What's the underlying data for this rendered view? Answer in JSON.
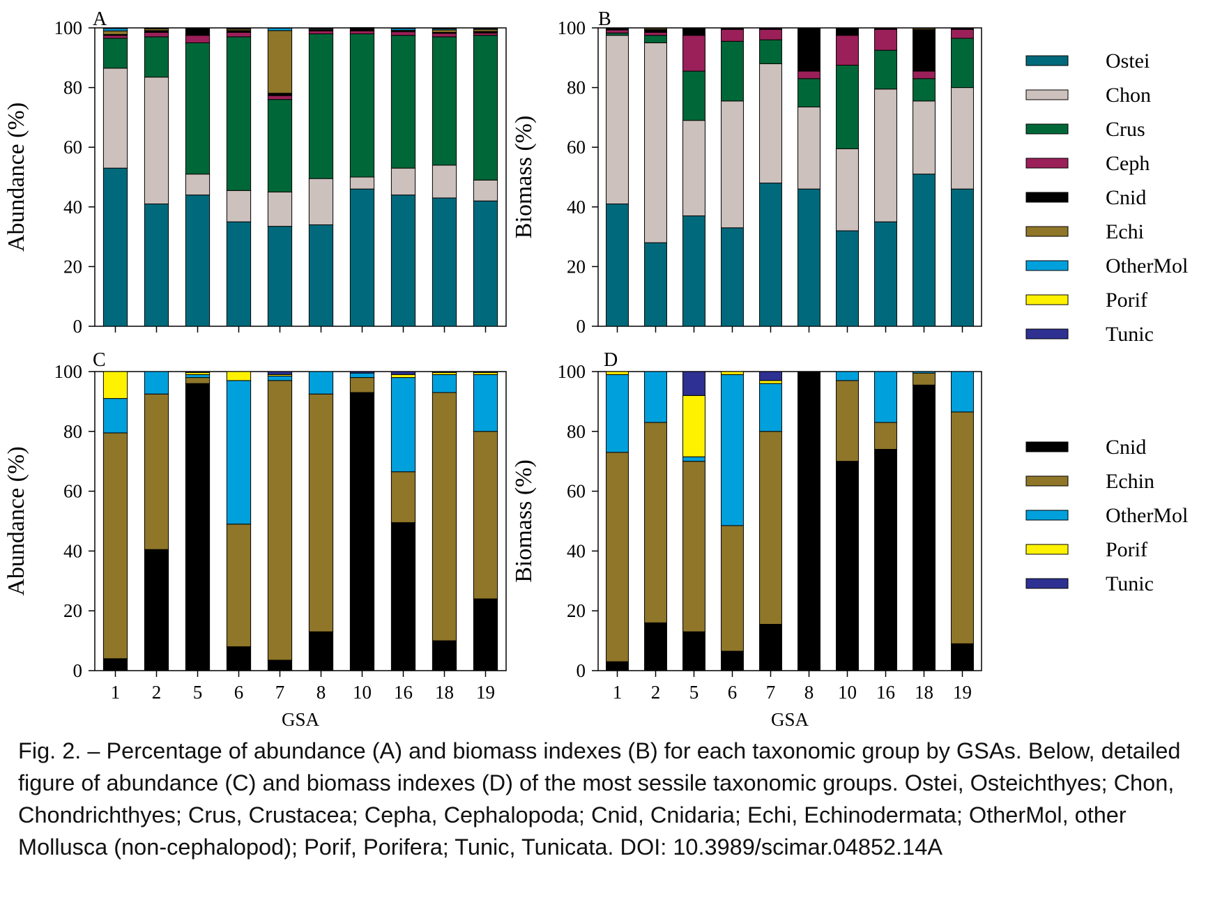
{
  "colors": {
    "Ostei": "#006a7c",
    "Chon": "#cdc1bd",
    "Crus": "#006838",
    "Ceph": "#9b2059",
    "Cnid": "#000000",
    "Echi": "#8f7629",
    "Echin": "#8f7629",
    "OtherMol": "#00a0dc",
    "Porif": "#fff200",
    "Tunic": "#2e3192"
  },
  "chart_data": [
    {
      "panel": "A",
      "type": "bar",
      "stacked": true,
      "ylabel": "Abundance (%)",
      "xlabel": "",
      "ylim": [
        0,
        100
      ],
      "yticks": [
        0,
        20,
        40,
        60,
        80,
        100
      ],
      "categories": [
        "1",
        "2",
        "5",
        "6",
        "7",
        "8",
        "10",
        "16",
        "18",
        "19"
      ],
      "series": [
        {
          "name": "Ostei",
          "values": [
            53,
            41,
            44,
            35,
            33.5,
            34,
            46,
            44,
            43,
            42
          ]
        },
        {
          "name": "Chon",
          "values": [
            33.5,
            42.5,
            7,
            10.5,
            11.5,
            15.5,
            4,
            9,
            11,
            7
          ]
        },
        {
          "name": "Crus",
          "values": [
            10,
            13.5,
            44,
            51.5,
            31,
            48.5,
            48,
            44.5,
            43,
            48.5
          ]
        },
        {
          "name": "Ceph",
          "values": [
            1,
            1.5,
            2.5,
            1.5,
            1.3,
            1,
            1,
            1.2,
            1.2,
            0.8
          ]
        },
        {
          "name": "Cnid",
          "values": [
            0.3,
            0.6,
            2.3,
            0.6,
            0.8,
            0.2,
            1,
            0.2,
            0.3,
            0.5
          ]
        },
        {
          "name": "Echi",
          "values": [
            1.2,
            0.6,
            0.1,
            0.5,
            21,
            0.3,
            0.1,
            0.3,
            0.8,
            0.7
          ]
        },
        {
          "name": "OtherMol",
          "values": [
            0.8,
            0.2,
            0.1,
            0.2,
            0.8,
            0.3,
            0,
            0.6,
            0.4,
            0.3
          ]
        },
        {
          "name": "Porif",
          "values": [
            0.2,
            0.1,
            0,
            0.1,
            0.1,
            0.1,
            0,
            0.1,
            0.2,
            0.1
          ]
        },
        {
          "name": "Tunic",
          "values": [
            0,
            0,
            0,
            0.1,
            0,
            0.1,
            0,
            0.1,
            0.1,
            0.1
          ]
        }
      ]
    },
    {
      "panel": "B",
      "type": "bar",
      "stacked": true,
      "ylabel": "Biomass (%)",
      "xlabel": "",
      "ylim": [
        0,
        100
      ],
      "yticks": [
        0,
        20,
        40,
        60,
        80,
        100
      ],
      "categories": [
        "1",
        "2",
        "5",
        "6",
        "7",
        "8",
        "10",
        "16",
        "18",
        "19"
      ],
      "series": [
        {
          "name": "Ostei",
          "values": [
            41,
            28,
            37,
            33,
            48,
            46,
            32,
            35,
            51,
            46
          ]
        },
        {
          "name": "Chon",
          "values": [
            56.5,
            67,
            32,
            42.5,
            40,
            27.5,
            27.5,
            44.5,
            24.5,
            34
          ]
        },
        {
          "name": "Crus",
          "values": [
            0.8,
            2.5,
            16.5,
            20,
            8,
            9.5,
            28,
            13,
            7.5,
            16.5
          ]
        },
        {
          "name": "Ceph",
          "values": [
            1,
            1,
            12,
            4,
            3.5,
            2.5,
            10,
            7,
            2.5,
            3
          ]
        },
        {
          "name": "Cnid",
          "values": [
            0.4,
            1,
            2.3,
            0.3,
            0.3,
            14.4,
            2.5,
            0.3,
            14,
            0.2
          ]
        },
        {
          "name": "Echi",
          "values": [
            0.2,
            0.4,
            0.1,
            0.1,
            0.1,
            0.1,
            0,
            0.1,
            0.4,
            0.2
          ]
        },
        {
          "name": "OtherMol",
          "values": [
            0.1,
            0.1,
            0.1,
            0.1,
            0.1,
            0,
            0,
            0.1,
            0.1,
            0.1
          ]
        },
        {
          "name": "Porif",
          "values": [
            0,
            0,
            0,
            0,
            0,
            0,
            0,
            0,
            0,
            0
          ]
        },
        {
          "name": "Tunic",
          "values": [
            0,
            0,
            0,
            0,
            0,
            0,
            0,
            0,
            0,
            0
          ]
        }
      ]
    },
    {
      "panel": "C",
      "type": "bar",
      "stacked": true,
      "ylabel": "Abundance (%)",
      "xlabel": "GSA",
      "ylim": [
        0,
        100
      ],
      "yticks": [
        0,
        20,
        40,
        60,
        80,
        100
      ],
      "categories": [
        "1",
        "2",
        "5",
        "6",
        "7",
        "8",
        "10",
        "16",
        "18",
        "19"
      ],
      "series": [
        {
          "name": "Cnid",
          "values": [
            4,
            40.5,
            96,
            8,
            3.5,
            13,
            93,
            49.5,
            10,
            24
          ]
        },
        {
          "name": "Echin",
          "values": [
            75.5,
            52,
            2,
            41,
            93.5,
            79.5,
            5,
            17,
            83,
            56
          ]
        },
        {
          "name": "OtherMol",
          "values": [
            11.5,
            7.5,
            1,
            48,
            1.5,
            7.5,
            1.5,
            31.5,
            6,
            19
          ]
        },
        {
          "name": "Porif",
          "values": [
            9,
            0,
            0.7,
            3,
            0.5,
            0,
            0,
            1,
            0.7,
            0.7
          ]
        },
        {
          "name": "Tunic",
          "values": [
            0,
            0,
            0.3,
            0,
            1,
            0,
            0.5,
            1,
            0.3,
            0.3
          ]
        }
      ]
    },
    {
      "panel": "D",
      "type": "bar",
      "stacked": true,
      "ylabel": "Biomass (%)",
      "xlabel": "GSA",
      "ylim": [
        0,
        100
      ],
      "yticks": [
        0,
        20,
        40,
        60,
        80,
        100
      ],
      "categories": [
        "1",
        "2",
        "5",
        "6",
        "7",
        "8",
        "10",
        "16",
        "18",
        "19"
      ],
      "series": [
        {
          "name": "Cnid",
          "values": [
            3,
            16,
            13,
            6.5,
            15.5,
            100,
            70,
            74,
            95.5,
            9
          ]
        },
        {
          "name": "Echin",
          "values": [
            70,
            67,
            57,
            42,
            64.5,
            0,
            27,
            9,
            4,
            77.5
          ]
        },
        {
          "name": "OtherMol",
          "values": [
            26,
            17,
            1.5,
            50.5,
            16,
            0,
            3,
            17,
            0.5,
            13.5
          ]
        },
        {
          "name": "Porif",
          "values": [
            1,
            0,
            20.5,
            1,
            1,
            0,
            0,
            0,
            0,
            0
          ]
        },
        {
          "name": "Tunic",
          "values": [
            0,
            0,
            8,
            0,
            3,
            0,
            0,
            0,
            0,
            0
          ]
        }
      ]
    }
  ],
  "legend_top": [
    "Ostei",
    "Chon",
    "Crus",
    "Ceph",
    "Cnid",
    "Echi",
    "OtherMol",
    "Porif",
    "Tunic"
  ],
  "legend_bottom": [
    "Cnid",
    "Echin",
    "OtherMol",
    "Porif",
    "Tunic"
  ],
  "caption": "Fig. 2. – Percentage of abundance (A) and biomass indexes (B) for each taxonomic group by GSAs. Below, detailed figure of abundance (C) and biomass indexes (D) of the most sessile taxonomic groups. Ostei, Osteichthyes; Chon, Chondrichthyes; Crus, Crustacea; Cepha, Cephalopoda; Cnid, Cnidaria; Echi, Echinodermata; OtherMol, other Mollusca (non-cephalopod); Porif, Porifera; Tunic, Tunicata. DOI: 10.3989/scimar.04852.14A"
}
